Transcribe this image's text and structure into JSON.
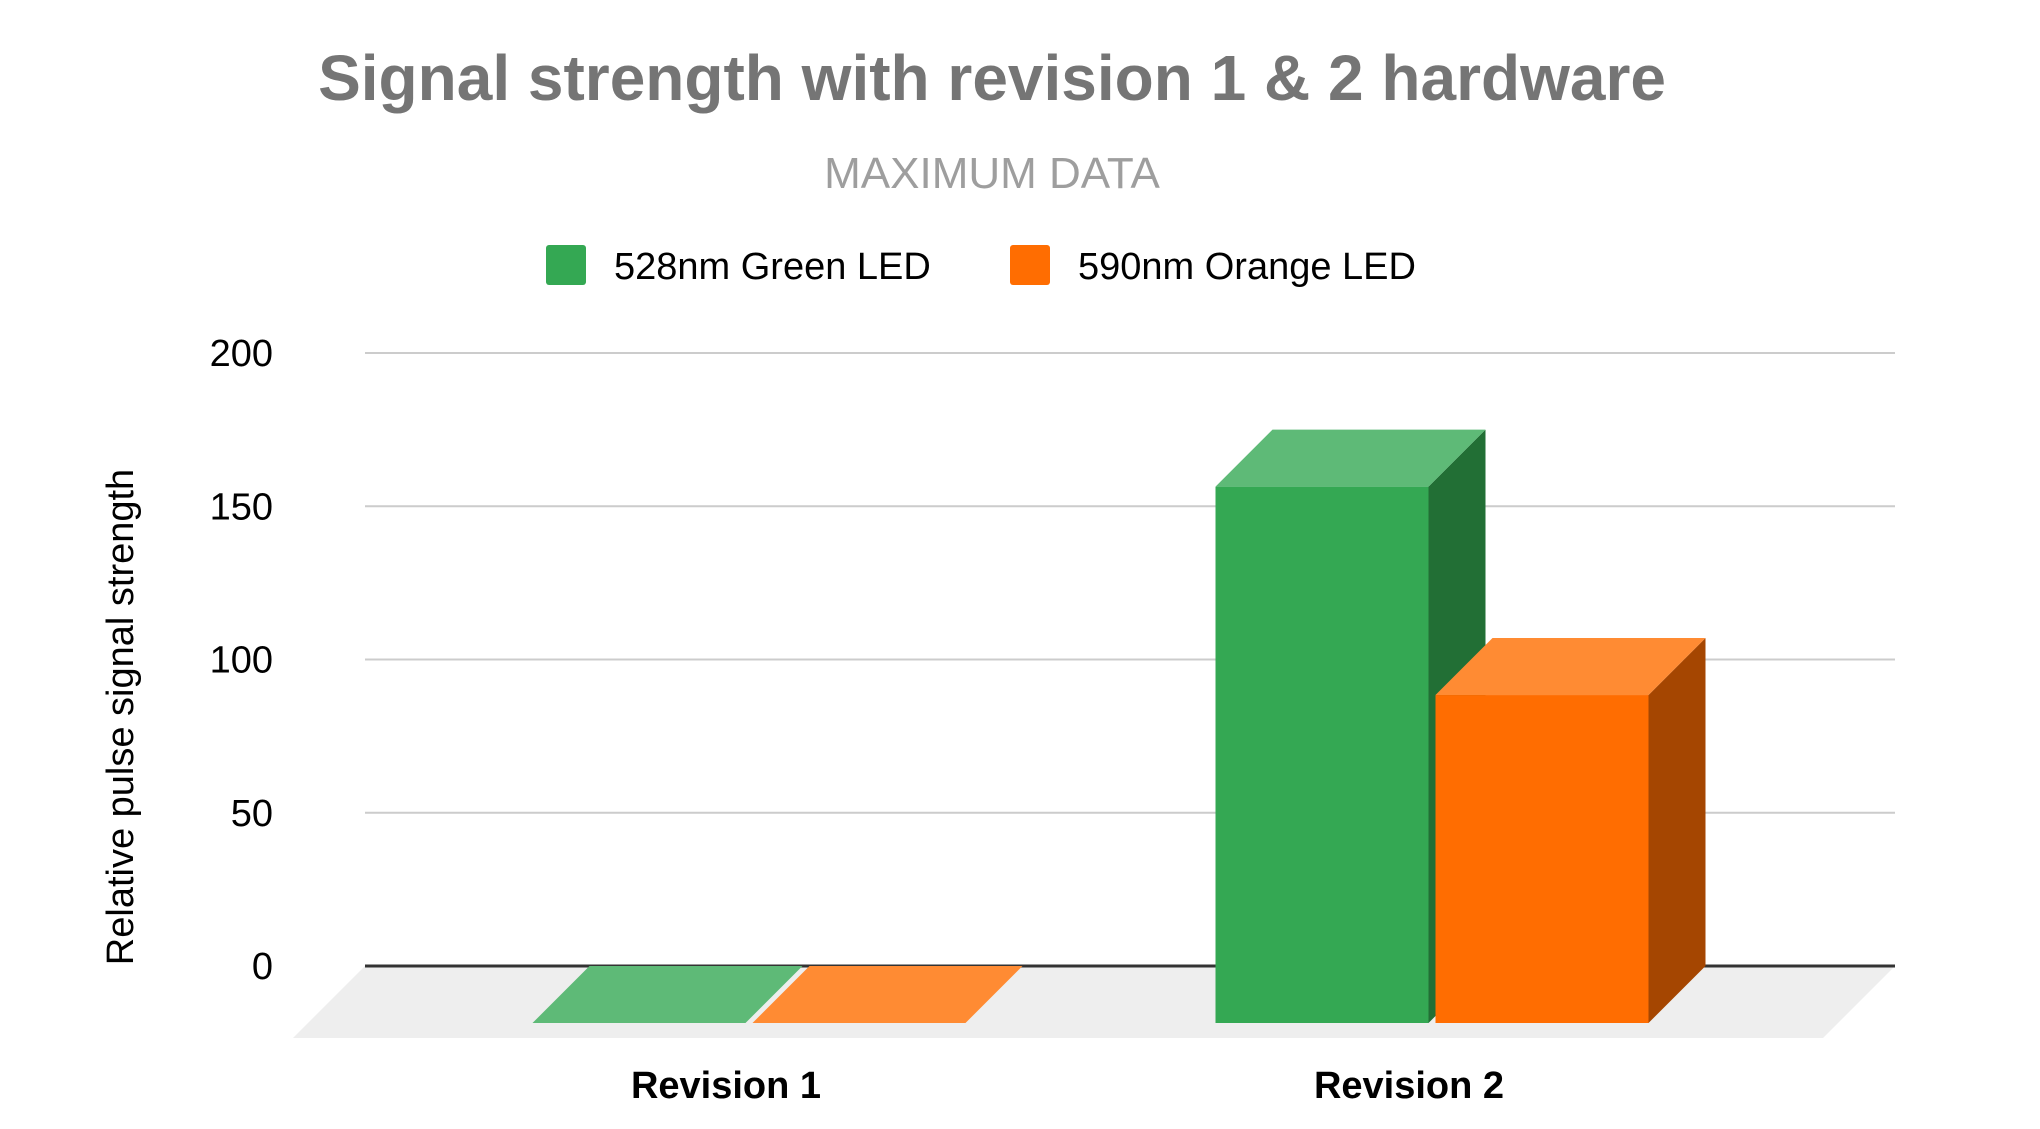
{
  "chart_data": {
    "type": "bar",
    "title": "Signal strength with revision 1 & 2 hardware",
    "subtitle": "MAXIMUM DATA",
    "xlabel": "",
    "ylabel": "Relative pulse signal strength",
    "categories": [
      "Revision 1",
      "Revision 2"
    ],
    "series": [
      {
        "name": "528nm Green LED",
        "values": [
          0,
          175
        ]
      },
      {
        "name": "590nm Orange LED",
        "values": [
          0,
          107
        ]
      }
    ],
    "ylim": [
      0,
      200
    ],
    "yticks": [
      "0",
      "50",
      "100",
      "150",
      "200"
    ],
    "grid": true,
    "legend_position": "top",
    "style": "3d",
    "colors": {
      "green_front": "#34a853",
      "green_top": "#5eba77",
      "green_side": "#226f35",
      "orange_front": "#ff6d01",
      "orange_top": "#ff8b33",
      "orange_side": "#a54601",
      "title": "#757575",
      "subtitle": "#9e9e9e",
      "text": "#000000",
      "grid": "#cccccc",
      "floor": "#eeeeee"
    }
  }
}
